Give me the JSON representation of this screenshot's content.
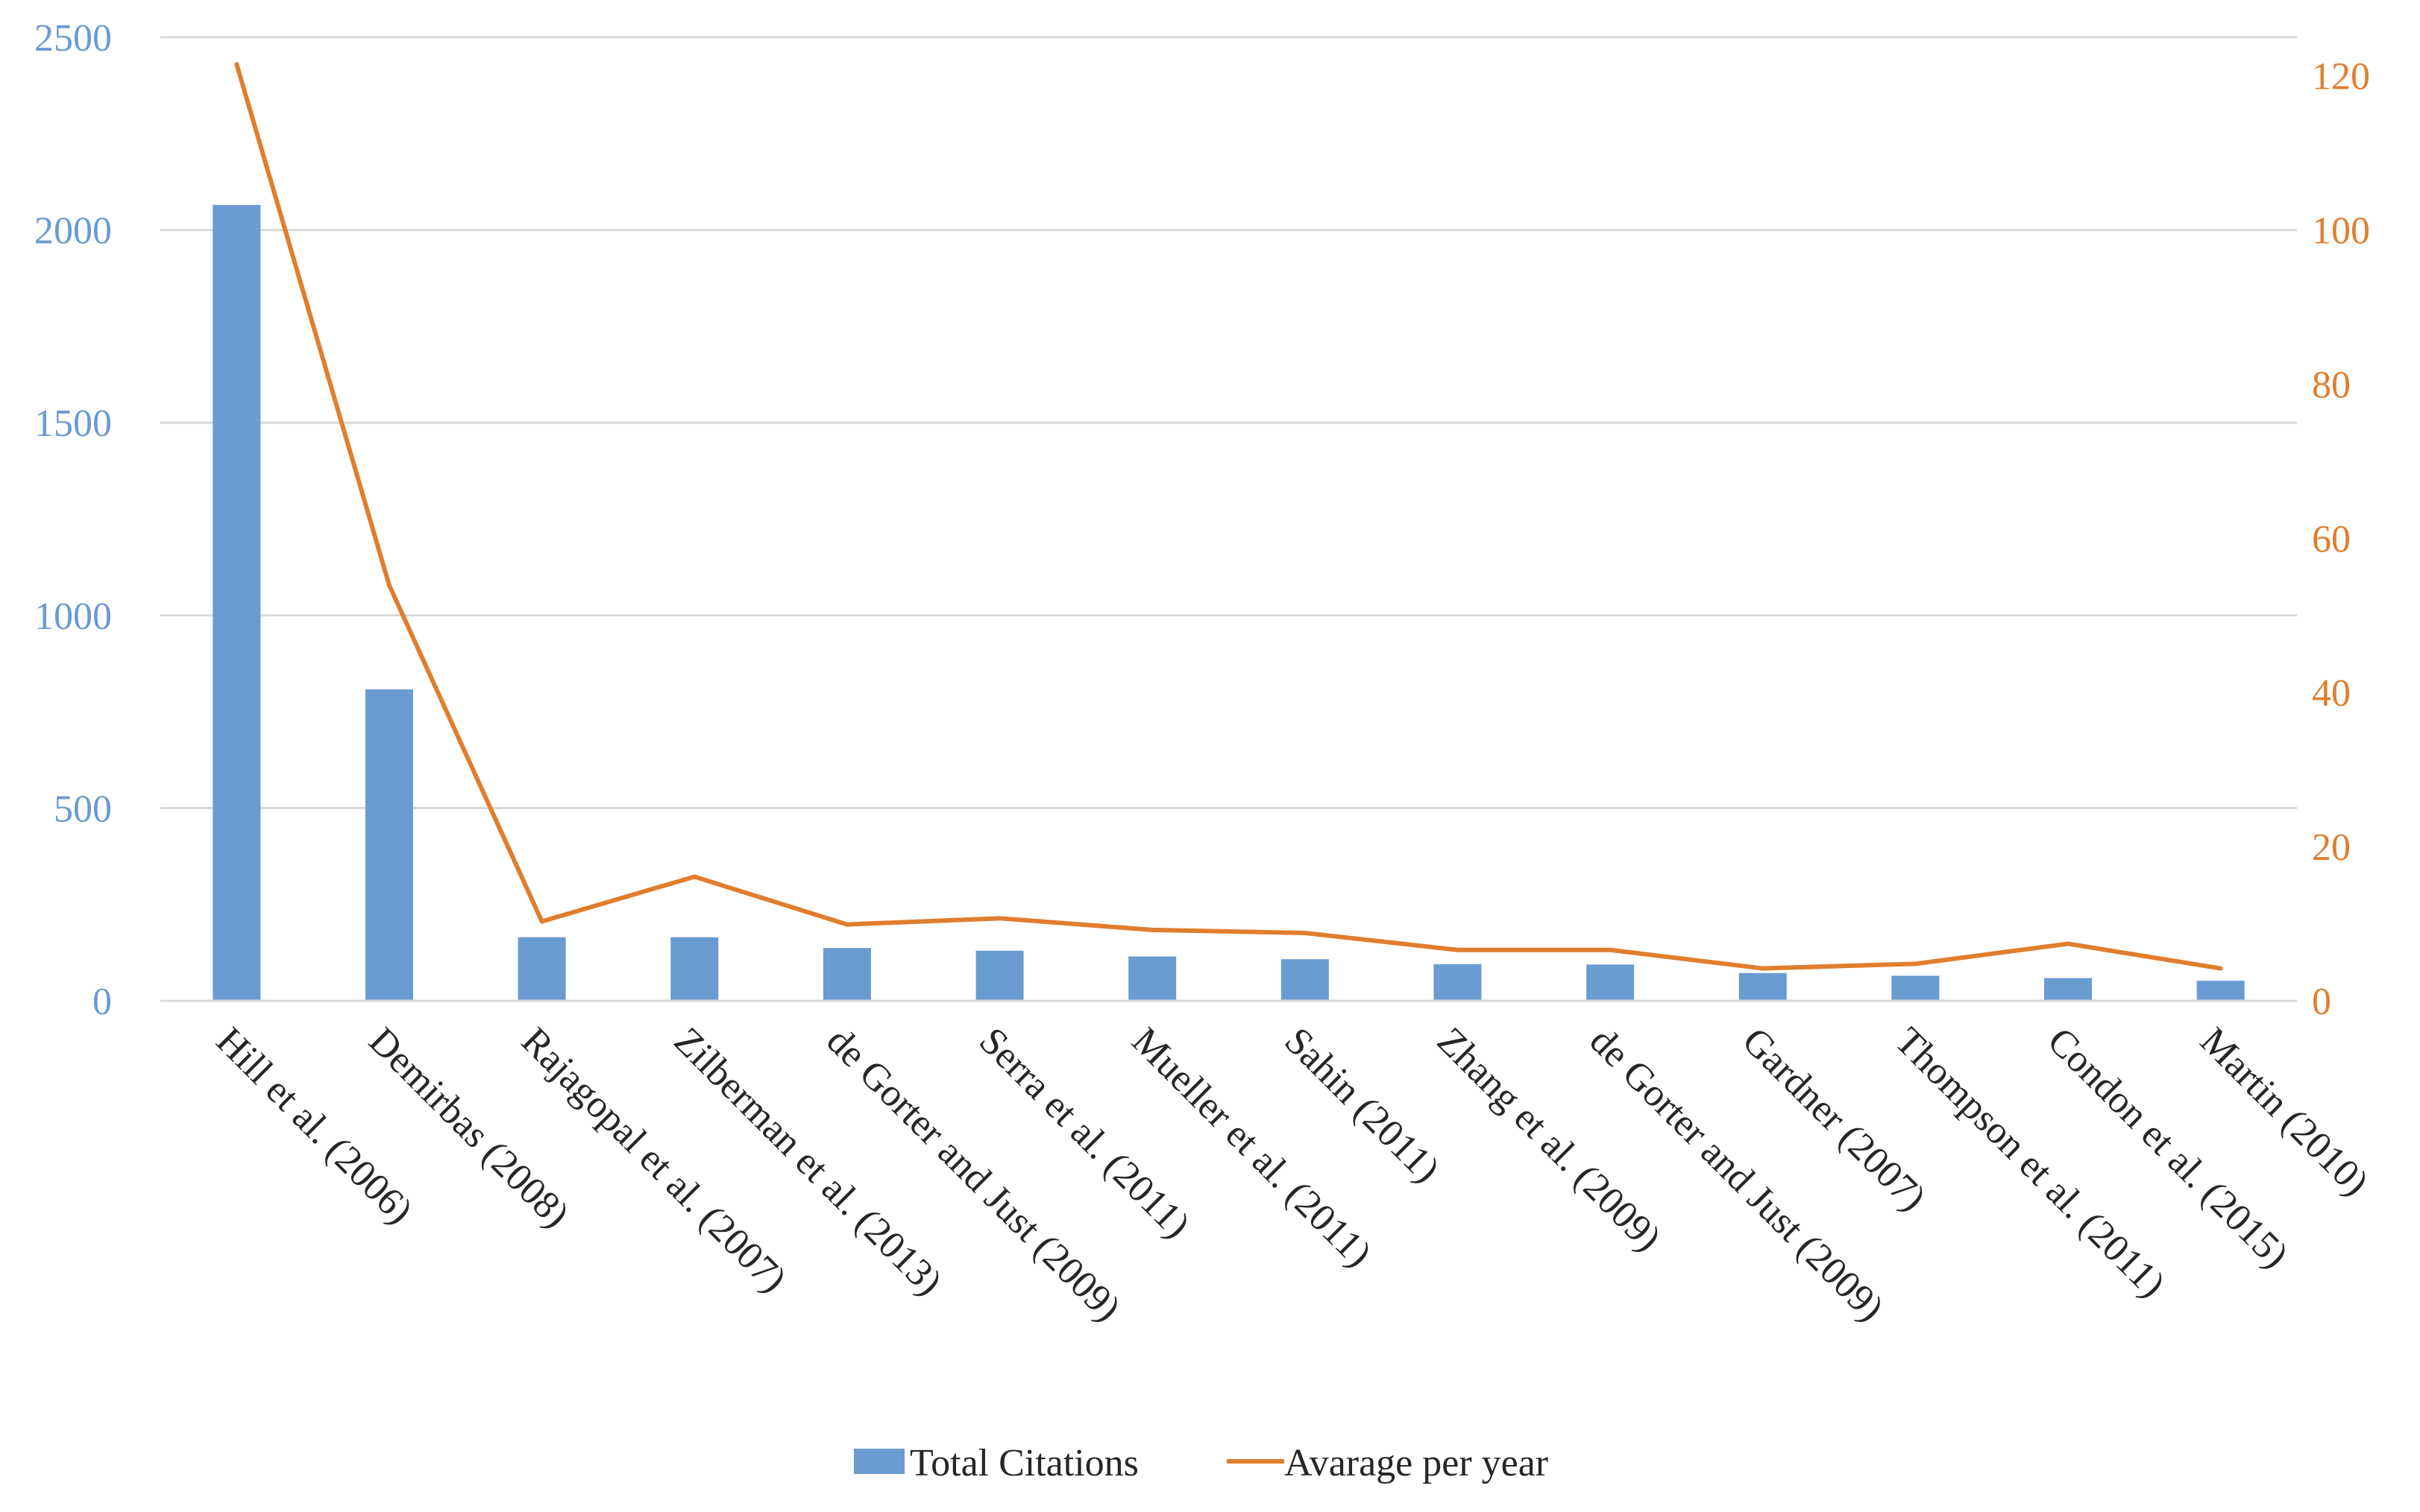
{
  "chart_data": {
    "type": "bar+line",
    "categories": [
      "Hill et al. (2006)",
      "Demirbas (2008)",
      "Rajagopal et al. (2007)",
      "Zilberman et al. (2013)",
      "de Gorter and Just (2009)",
      "Serra et al. (2011)",
      "Mueller et al. (2011)",
      "Sahin (2011)",
      "Zhang et al. (2009)",
      "de Gorter and Just (2009)",
      "Gardner (2007)",
      "Thompson et al. (2011)",
      "Condon et al. (2015)",
      "Martin (2010)"
    ],
    "series": [
      {
        "name": "Total Citations",
        "type": "bar",
        "axis": "left",
        "color": "#6A9BD1",
        "values": [
          2065,
          808,
          165,
          165,
          137,
          130,
          115,
          108,
          95,
          94,
          72,
          65,
          59,
          52
        ]
      },
      {
        "name": "Avarage per year",
        "type": "line",
        "axis": "right",
        "color": "#E07E2E",
        "values": [
          121.5,
          53.9,
          10.3,
          16.1,
          9.9,
          10.7,
          9.2,
          8.8,
          6.6,
          6.6,
          4.2,
          4.8,
          7.4,
          4.2
        ]
      }
    ],
    "y_left": {
      "min": 0,
      "max": 2500,
      "ticks": [
        "0",
        "500",
        "1000",
        "1500",
        "2000",
        "2500"
      ],
      "color": "#6A9BD1"
    },
    "y_right": {
      "min": 0,
      "max": 125,
      "ticks": [
        "0",
        "20",
        "40",
        "60",
        "80",
        "100",
        "120"
      ],
      "color": "#E07E2E"
    },
    "grid": true,
    "legend": "bottom-center"
  }
}
